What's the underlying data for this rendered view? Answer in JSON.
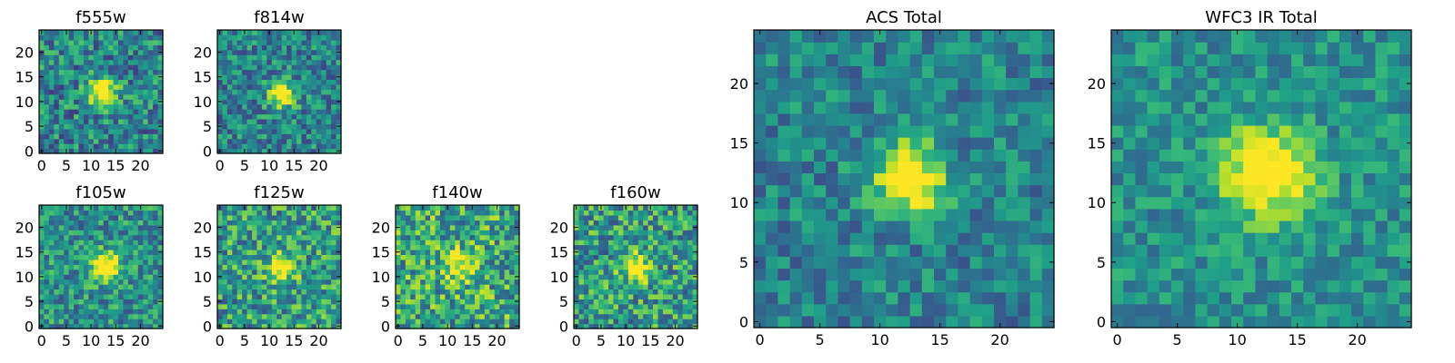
{
  "chart_data": [
    {
      "type": "heatmap",
      "title": "f555w",
      "xlim": [
        0,
        24
      ],
      "ylim": [
        0,
        24
      ],
      "xticks": [
        0,
        5,
        10,
        15,
        20
      ],
      "yticks": [
        0,
        5,
        10,
        15,
        20
      ],
      "center": [
        12.5,
        12.0
      ],
      "sigma": 2.0,
      "amp": 0.75,
      "noise": 0.55,
      "base": 0.45,
      "seed": 11,
      "grid": false
    },
    {
      "type": "heatmap",
      "title": "f814w",
      "xlim": [
        0,
        24
      ],
      "ylim": [
        0,
        24
      ],
      "xticks": [
        0,
        5,
        10,
        15,
        20
      ],
      "yticks": [
        0,
        5,
        10,
        15,
        20
      ],
      "center": [
        12.5,
        11.5
      ],
      "sigma": 1.8,
      "amp": 0.75,
      "noise": 0.5,
      "base": 0.45,
      "seed": 23,
      "grid": false
    },
    {
      "type": "heatmap",
      "title": "f105w",
      "xlim": [
        0,
        24
      ],
      "ylim": [
        0,
        24
      ],
      "xticks": [
        0,
        5,
        10,
        15,
        20
      ],
      "yticks": [
        0,
        5,
        10,
        15,
        20
      ],
      "center": [
        13.0,
        12.0
      ],
      "sigma": 2.0,
      "amp": 0.75,
      "noise": 0.5,
      "base": 0.5,
      "seed": 37,
      "grid": false
    },
    {
      "type": "heatmap",
      "title": "f125w",
      "xlim": [
        0,
        24
      ],
      "ylim": [
        0,
        24
      ],
      "xticks": [
        0,
        5,
        10,
        15,
        20
      ],
      "yticks": [
        0,
        5,
        10,
        15,
        20
      ],
      "center": [
        12.5,
        12.0
      ],
      "sigma": 2.0,
      "amp": 0.55,
      "noise": 0.6,
      "base": 0.55,
      "seed": 41,
      "grid": false
    },
    {
      "type": "heatmap",
      "title": "f140w",
      "xlim": [
        0,
        24
      ],
      "ylim": [
        0,
        24
      ],
      "xticks": [
        0,
        5,
        10,
        15,
        20
      ],
      "yticks": [
        0,
        5,
        10,
        15,
        20
      ],
      "center": [
        12.5,
        12.0
      ],
      "sigma": 2.2,
      "amp": 0.45,
      "noise": 0.65,
      "base": 0.6,
      "seed": 53,
      "grid": false
    },
    {
      "type": "heatmap",
      "title": "f160w",
      "xlim": [
        0,
        24
      ],
      "ylim": [
        0,
        24
      ],
      "xticks": [
        0,
        5,
        10,
        15,
        20
      ],
      "yticks": [
        0,
        5,
        10,
        15,
        20
      ],
      "center": [
        12.0,
        12.0
      ],
      "sigma": 2.0,
      "amp": 0.55,
      "noise": 0.6,
      "base": 0.55,
      "seed": 67,
      "grid": false
    },
    {
      "type": "heatmap",
      "title": "ACS Total",
      "xlim": [
        0,
        24
      ],
      "ylim": [
        0,
        24
      ],
      "xticks": [
        0,
        5,
        10,
        15,
        20
      ],
      "yticks": [
        0,
        5,
        10,
        15,
        20
      ],
      "center": [
        12.5,
        12.0
      ],
      "sigma": 2.0,
      "amp": 0.75,
      "noise": 0.4,
      "base": 0.45,
      "seed": 79,
      "grid": false
    },
    {
      "type": "heatmap",
      "title": "WFC3 IR Total",
      "xlim": [
        0,
        24
      ],
      "ylim": [
        0,
        24
      ],
      "xticks": [
        0,
        5,
        10,
        15,
        20
      ],
      "yticks": [
        0,
        5,
        10,
        15,
        20
      ],
      "center": [
        12.5,
        12.5
      ],
      "sigma": 2.6,
      "amp": 0.7,
      "noise": 0.35,
      "base": 0.5,
      "seed": 97,
      "grid": false
    }
  ],
  "colormap": [
    "#440154",
    "#482878",
    "#3e4989",
    "#31688e",
    "#26828e",
    "#1f9e89",
    "#35b779",
    "#6ece58",
    "#b5de2b",
    "#fde725"
  ]
}
